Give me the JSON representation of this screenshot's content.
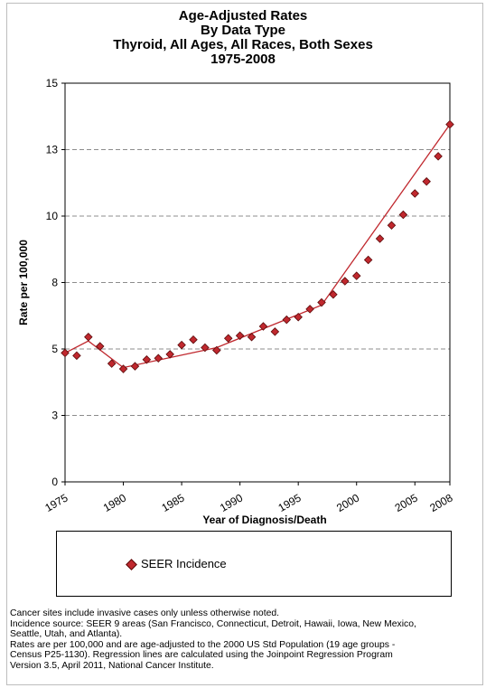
{
  "chart_data": {
    "type": "line",
    "title": [
      "Age-Adjusted  Rates",
      "By Data Type",
      "Thyroid, All Ages, All Races, Both Sexes",
      "1975-2008"
    ],
    "xlabel": "Year of Diagnosis/Death",
    "ylabel": "Rate per 100,000",
    "xlim": [
      1975,
      2008
    ],
    "ylim": [
      0,
      15
    ],
    "x_ticks": [
      1975,
      1980,
      1985,
      1990,
      1995,
      2000,
      2005,
      2008
    ],
    "y_ticks": [
      0,
      3,
      5,
      8,
      10,
      13,
      15
    ],
    "y_tick_values": [
      0,
      2.5,
      5,
      7.5,
      10,
      12.5,
      15
    ],
    "grid": "horizontal dashed",
    "legend_position": "below",
    "series": [
      {
        "name": "SEER Incidence",
        "color": "#c0282e",
        "x": [
          1975,
          1976,
          1977,
          1978,
          1979,
          1980,
          1981,
          1982,
          1983,
          1984,
          1985,
          1986,
          1987,
          1988,
          1989,
          1990,
          1991,
          1992,
          1993,
          1994,
          1995,
          1996,
          1997,
          1998,
          1999,
          2000,
          2001,
          2002,
          2003,
          2004,
          2005,
          2006,
          2007,
          2008
        ],
        "y": [
          4.85,
          4.75,
          5.45,
          5.1,
          4.45,
          4.25,
          4.35,
          4.6,
          4.65,
          4.8,
          5.15,
          5.35,
          5.05,
          4.95,
          5.4,
          5.5,
          5.45,
          5.85,
          5.65,
          6.1,
          6.2,
          6.5,
          6.75,
          7.05,
          7.55,
          7.75,
          8.35,
          9.15,
          9.65,
          10.05,
          10.85,
          11.3,
          12.25,
          13.45
        ]
      }
    ],
    "regression": {
      "x": [
        1975,
        1977,
        1980,
        1988,
        1997,
        2008
      ],
      "y": [
        4.85,
        5.3,
        4.3,
        5.05,
        6.65,
        13.45
      ]
    }
  },
  "legend": {
    "label": "SEER Incidence"
  },
  "footnotes": [
    "Cancer sites include invasive cases only unless otherwise noted.",
    "Incidence source: SEER 9 areas (San Francisco, Connecticut, Detroit, Hawaii, Iowa, New Mexico,",
    "Seattle, Utah, and Atlanta).",
    "Rates are per 100,000 and are age-adjusted to the 2000 US Std Population (19 age groups -",
    "Census P25-1130). Regression lines are calculated using the Joinpoint Regression Program",
    "Version 3.5, April 2011, National Cancer Institute."
  ]
}
